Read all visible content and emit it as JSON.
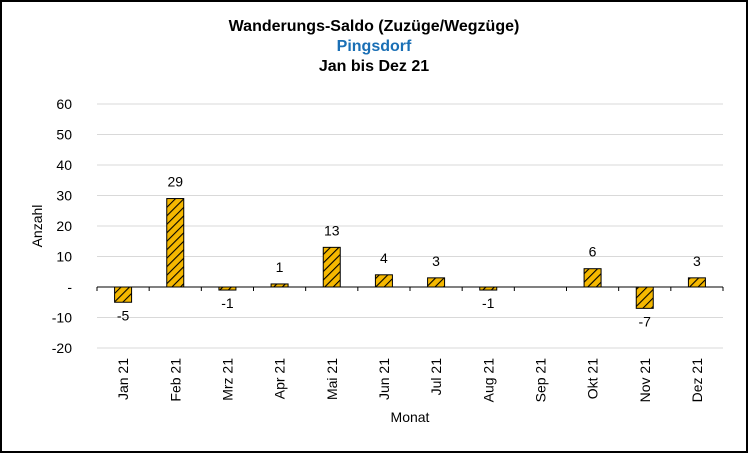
{
  "chart_data": {
    "type": "bar",
    "title": "Wanderungs-Saldo (Zuzüge/Wegzüge)",
    "subtitle": "Pingsdorf",
    "subtitle2": "Jan bis Dez 21",
    "xlabel": "Monat",
    "ylabel": "Anzahl",
    "categories": [
      "Jan 21",
      "Feb 21",
      "Mrz 21",
      "Apr 21",
      "Mai 21",
      "Jun 21",
      "Jul 21",
      "Aug 21",
      "Sep 21",
      "Okt 21",
      "Nov 21",
      "Dez 21"
    ],
    "values": [
      -5,
      29,
      -1,
      1,
      13,
      4,
      3,
      -1,
      null,
      6,
      -7,
      3
    ],
    "data_labels": [
      "-5",
      "29",
      "-1",
      "1",
      "13",
      "4",
      "3",
      "-1",
      "",
      "6",
      "-7",
      "3"
    ],
    "ylim": [
      -20,
      60
    ],
    "yticks": [
      60,
      50,
      40,
      30,
      20,
      10,
      0,
      -10,
      -20
    ],
    "ytick_labels": [
      "60",
      "50",
      "40",
      "30",
      "20",
      "10",
      "-",
      "-10",
      "-20"
    ],
    "grid": true,
    "bar_fill": "#f5b800",
    "bar_hatch": "#000000",
    "title_color": "#000000",
    "subtitle_color": "#1a6fb5"
  }
}
